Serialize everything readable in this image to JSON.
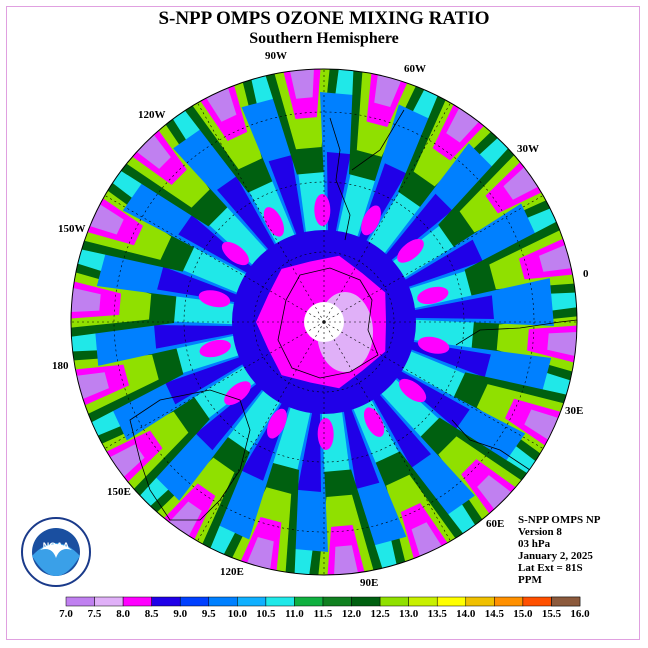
{
  "title": "S-NPP OMPS OZONE MIXING RATIO",
  "subtitle": "Southern Hemisphere",
  "longitude_labels": [
    {
      "id": "90w",
      "text": "90W"
    },
    {
      "id": "60w",
      "text": "60W"
    },
    {
      "id": "120w",
      "text": "120W"
    },
    {
      "id": "30w",
      "text": "30W"
    },
    {
      "id": "150w",
      "text": "150W"
    },
    {
      "id": "0",
      "text": "0"
    },
    {
      "id": "180",
      "text": "180"
    },
    {
      "id": "30e",
      "text": "30E"
    },
    {
      "id": "150e",
      "text": "150E"
    },
    {
      "id": "60e",
      "text": "60E"
    },
    {
      "id": "120e",
      "text": "120E"
    },
    {
      "id": "90e",
      "text": "90E"
    }
  ],
  "info": {
    "line1": "S-NPP OMPS NP",
    "line2": "Version 8",
    "line3": "03 hPa",
    "line4": "January 2, 2025",
    "line5": "Lat Ext = 81S",
    "line6": "PPM"
  },
  "logo": {
    "text": "NOAA",
    "icon": "noaa-logo"
  },
  "colorbar": {
    "labels": [
      "7.0",
      "7.5",
      "8.0",
      "8.5",
      "9.0",
      "9.5",
      "10.0",
      "10.5",
      "11.0",
      "11.5",
      "12.0",
      "12.5",
      "13.0",
      "13.5",
      "14.0",
      "14.5",
      "15.0",
      "15.5",
      "16.0"
    ],
    "colors": [
      "#c080f0",
      "#e0b0f8",
      "#ff00ff",
      "#2000e8",
      "#0040ff",
      "#0080ff",
      "#10b0ff",
      "#20e8e8",
      "#10b040",
      "#108020",
      "#006010",
      "#90e000",
      "#c8f000",
      "#ffff00",
      "#f0c000",
      "#ff9000",
      "#ff5000",
      "#ff0000",
      "#8c5a3c"
    ]
  }
}
